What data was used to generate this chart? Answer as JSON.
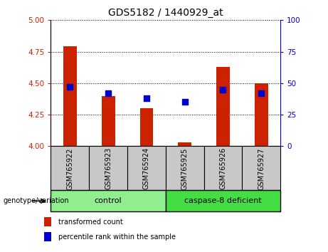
{
  "title": "GDS5182 / 1440929_at",
  "samples": [
    "GSM765922",
    "GSM765923",
    "GSM765924",
    "GSM765925",
    "GSM765926",
    "GSM765927"
  ],
  "red_values": [
    4.79,
    4.4,
    4.3,
    4.03,
    4.63,
    4.5
  ],
  "blue_values_left": [
    4.47,
    4.42,
    4.38,
    4.35,
    4.45,
    4.42
  ],
  "ylim_left": [
    4.0,
    5.0
  ],
  "ylim_right": [
    0,
    100
  ],
  "yticks_left": [
    4.0,
    4.25,
    4.5,
    4.75,
    5.0
  ],
  "yticks_right": [
    0,
    25,
    50,
    75,
    100
  ],
  "bar_width": 0.35,
  "bar_color": "#CC2200",
  "dot_color": "#0000CC",
  "dot_size": 30,
  "bg_color_xtick": "#C8C8C8",
  "left_tick_color": "#CC2200",
  "right_tick_color": "#0000CC",
  "genotype_label": "genotype/variation",
  "legend_red": "transformed count",
  "legend_blue": "percentile rank within the sample",
  "control_color": "#90EE90",
  "caspase_color": "#44DD44",
  "n_control": 3,
  "n_caspase": 3
}
